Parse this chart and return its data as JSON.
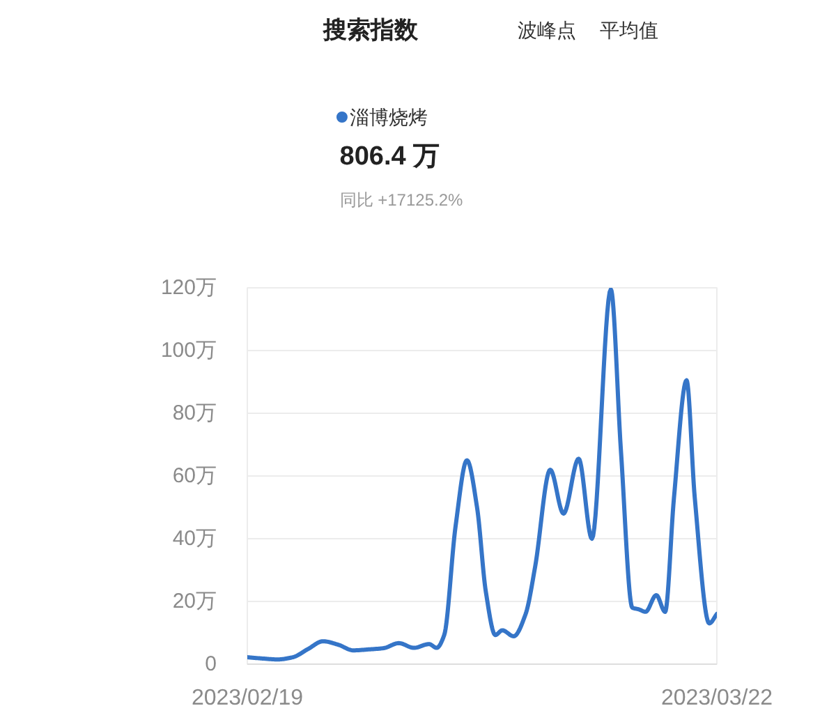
{
  "chart_data": {
    "type": "line",
    "title": "搜索指数",
    "annotations": [
      "波峰点",
      "平均值",
      "806.4 万",
      "同比 +17125.2%"
    ],
    "x": [
      "2023-02-19",
      "2023-02-20",
      "2023-02-21",
      "2023-02-22",
      "2023-02-23",
      "2023-02-24",
      "2023-02-25",
      "2023-02-26",
      "2023-02-27",
      "2023-02-28",
      "2023-03-01",
      "2023-03-02",
      "2023-03-03",
      "2023-03-03T12:00",
      "2023-03-04",
      "2023-03-04T18:00",
      "2023-03-05T12:00",
      "2023-03-06T04:00",
      "2023-03-06T18:00",
      "2023-03-07T09:00",
      "2023-03-07T20:00",
      "2023-03-08T14:00",
      "2023-03-09T09:00",
      "2023-03-10",
      "2023-03-11",
      "2023-03-11T21:00",
      "2023-03-12T21:00",
      "2023-03-13T18:00",
      "2023-03-15",
      "2023-03-15T16:00",
      "2023-03-16T10:00",
      "2023-03-16T20:00",
      "2023-03-17T07:00",
      "2023-03-18",
      "2023-03-18T14:00",
      "2023-03-19T04:00",
      "2023-03-20",
      "2023-03-20T13:00",
      "2023-03-21T12:00",
      "2023-03-22"
    ],
    "series": [
      {
        "name": "淄博烧烤",
        "color": "#3575c8",
        "values": [
          2.2,
          1.8,
          1.5,
          2.2,
          4.8,
          7.3,
          6.2,
          4.4,
          4.7,
          5.1,
          6.7,
          5.2,
          6.4,
          5.2,
          9.3,
          44,
          65,
          50,
          23,
          9.3,
          10.8,
          8.9,
          16,
          31,
          62,
          48,
          65.5,
          40,
          119.5,
          68,
          18,
          17.5,
          16.7,
          22,
          16.7,
          53,
          90.5,
          53,
          13,
          16
        ]
      }
    ],
    "xlim": [
      "2023-02-19",
      "2023-03-22"
    ],
    "xticks": [
      {
        "value": "2023-02-19",
        "label": "2023/02/19"
      },
      {
        "value": "2023-03-22",
        "label": "2023/03/22"
      }
    ],
    "ylim": [
      0,
      120
    ],
    "yticks": [
      0,
      {
        "value": 20,
        "label": "20万"
      },
      {
        "value": 40,
        "label": "40万"
      },
      {
        "value": 60,
        "label": "60万"
      },
      {
        "value": 80,
        "label": "80万"
      },
      {
        "value": 100,
        "label": "100万"
      },
      {
        "value": 120,
        "label": "120万"
      }
    ],
    "grid": "y",
    "legend": "top left",
    "line_style": "solid"
  }
}
